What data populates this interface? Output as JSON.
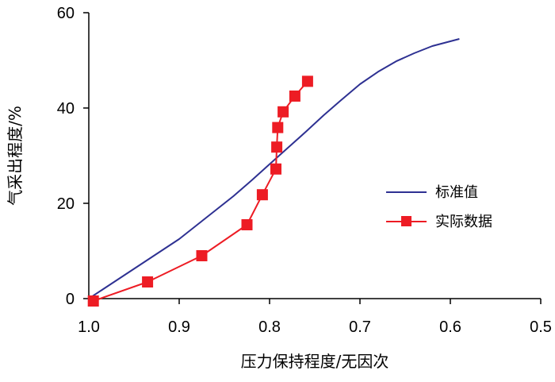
{
  "chart_data": {
    "type": "line",
    "xlabel": "压力保持程度/无因次",
    "ylabel": "气采出程度/%",
    "xlim": [
      1.0,
      0.5
    ],
    "ylim": [
      0,
      60
    ],
    "x_reversed": true,
    "x_ticks": [
      1.0,
      0.9,
      0.8,
      0.7,
      0.6,
      0.5
    ],
    "x_tick_labels": [
      "1.0",
      "0.9",
      "0.8",
      "0.7",
      "0.6",
      "0.5"
    ],
    "y_ticks": [
      0,
      20,
      40,
      60
    ],
    "y_tick_labels": [
      "0",
      "20",
      "40",
      "60"
    ],
    "grid": false,
    "legend_position": "right-middle",
    "series": [
      {
        "name": "标准值",
        "color": "#2e3192",
        "marker": "none",
        "x": [
          1.0,
          0.98,
          0.96,
          0.94,
          0.92,
          0.9,
          0.88,
          0.86,
          0.84,
          0.82,
          0.8,
          0.78,
          0.76,
          0.74,
          0.72,
          0.7,
          0.68,
          0.66,
          0.64,
          0.62,
          0.6,
          0.59
        ],
        "y": [
          0.0,
          2.5,
          5.0,
          7.5,
          10.0,
          12.5,
          15.5,
          18.5,
          21.5,
          24.8,
          28.2,
          31.6,
          35.0,
          38.5,
          41.8,
          45.0,
          47.6,
          49.8,
          51.5,
          53.0,
          54.0,
          54.5
        ]
      },
      {
        "name": "实际数据",
        "color": "#ed1c24",
        "marker": "square",
        "x": [
          0.995,
          0.935,
          0.875,
          0.825,
          0.808,
          0.793,
          0.792,
          0.791,
          0.785,
          0.772,
          0.758
        ],
        "y": [
          -0.5,
          3.5,
          9.0,
          15.5,
          21.8,
          27.2,
          31.8,
          35.9,
          39.2,
          42.5,
          45.6
        ]
      }
    ]
  }
}
